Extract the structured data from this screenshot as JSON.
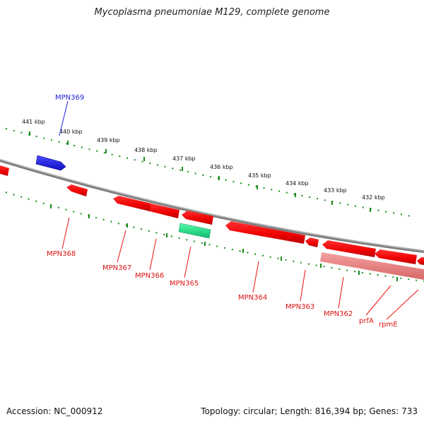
{
  "title": "Mycoplasma pneumoniae M129, complete genome",
  "footer": {
    "accession": "Accession: NC_000912",
    "topology": "Topology: circular; Length: 816,394 bp; Genes: 733"
  },
  "colors": {
    "backbone": "#8a8a8a",
    "tick_dots": "#1a8a1a",
    "forward_gene": "#2222dd",
    "reverse_gene": "#ee1111",
    "highlight_gene": "#22dd88",
    "faded_gene": "#f08080"
  },
  "tick_labels": [
    "441 kbp",
    "440 kbp",
    "439 kbp",
    "438 kbp",
    "437 kbp",
    "436 kbp",
    "435 kbp",
    "434 kbp",
    "433 kbp",
    "432 kbp"
  ],
  "gene_labels": {
    "MPN369": "MPN369",
    "MPN368": "MPN368",
    "MPN367": "MPN367",
    "MPN366": "MPN366",
    "MPN365": "MPN365",
    "MPN364": "MPN364",
    "MPN363": "MPN363",
    "MPN362": "MPN362",
    "prfA": "prfA",
    "rpmE": "rpmE"
  }
}
